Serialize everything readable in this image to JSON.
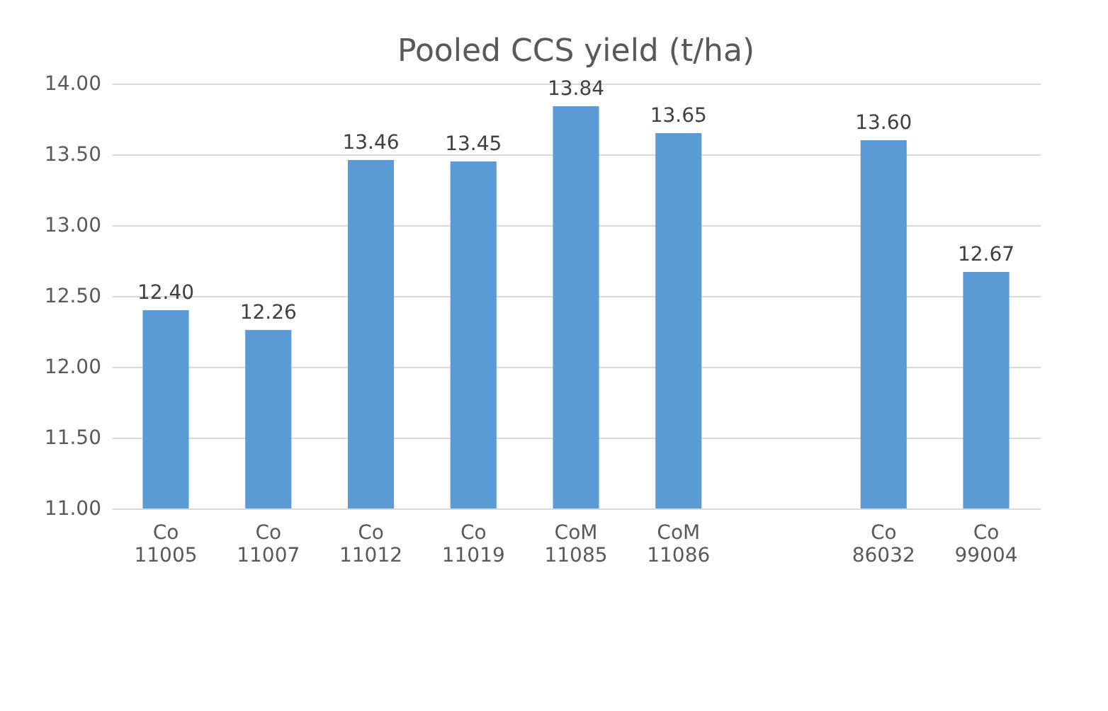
{
  "chart_data": {
    "type": "bar",
    "title": "Pooled CCS yield (t/ha)",
    "categories": [
      "Co 11005",
      "Co 11007",
      "Co 11012",
      "Co 11019",
      "CoM 11085",
      "CoM 11086",
      null,
      "Co 86032",
      "Co 99004"
    ],
    "values": [
      12.4,
      12.26,
      13.46,
      13.45,
      13.84,
      13.65,
      null,
      13.6,
      12.67
    ],
    "color": "#5b9bd5",
    "ylim": [
      11,
      14
    ],
    "yticks": [
      {
        "value": 11,
        "label": "11.00"
      },
      {
        "value": 11.5,
        "label": "11.50"
      },
      {
        "value": 12,
        "label": "12.00"
      },
      {
        "value": 12.5,
        "label": "12.50"
      },
      {
        "value": 13,
        "label": "13.00"
      },
      {
        "value": 13.5,
        "label": "13.50"
      },
      {
        "value": 14,
        "label": "14.00"
      }
    ],
    "grid": "y",
    "value_labels": [
      "12.40",
      "12.26",
      "13.46",
      "13.45",
      "13.84",
      "13.65",
      null,
      "13.60",
      "12.67"
    ]
  }
}
